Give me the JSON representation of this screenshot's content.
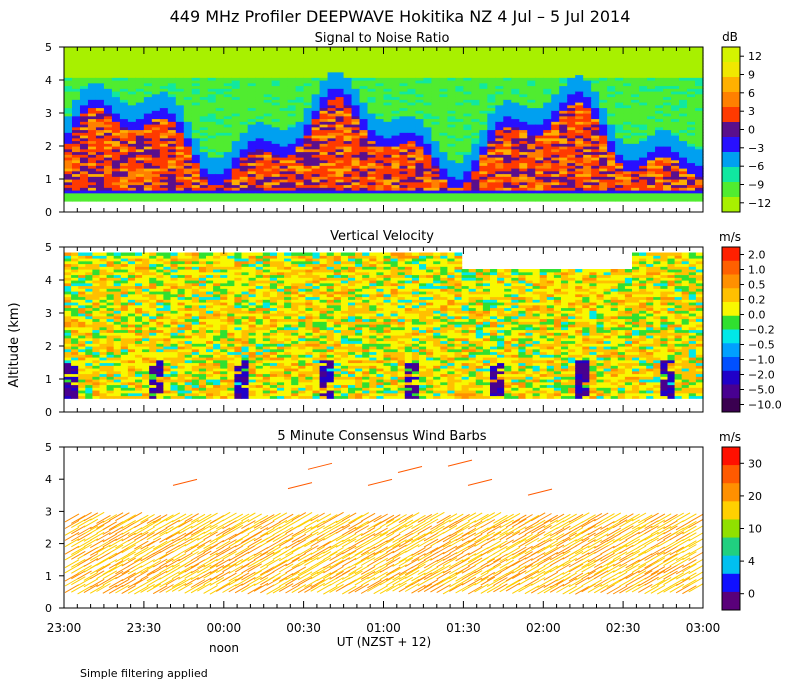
{
  "figure": {
    "title": "449 MHz Profiler DEEPWAVE Hokitika NZ  4 Jul –  5 Jul 2014",
    "ylabel": "Altitude (km)",
    "xlabel": "UT  (NZST + 12)",
    "x_ticks": [
      "23:00",
      "23:30",
      "00:00",
      "00:30",
      "01:00",
      "01:30",
      "02:00",
      "02:30",
      "03:00"
    ],
    "x_sublabel": "noon",
    "note": "Simple filtering applied"
  },
  "chart_data": [
    {
      "type": "heatmap",
      "title": "Signal to Noise Ratio",
      "x": [
        "23:00",
        "23:30",
        "00:00",
        "00:30",
        "01:00",
        "01:30",
        "02:00",
        "02:30",
        "03:00"
      ],
      "ylabel": "Altitude (km)",
      "ylim": [
        0,
        5
      ],
      "yticks": [
        "0",
        "1",
        "2",
        "3",
        "4",
        "5"
      ],
      "colorbar_unit": "dB",
      "colorbar_labels": [
        "12",
        "9",
        "6",
        "3",
        "0",
        "−3",
        "−6",
        "−9",
        "−12"
      ],
      "colors": [
        "#d4f400",
        "#f0e800",
        "#ffb000",
        "#ff8000",
        "#ff3a00",
        "#5a0f8c",
        "#2810ff",
        "#00a0f0",
        "#10e8a0",
        "#50ec30",
        "#a8f000"
      ],
      "description_layers_km": {
        "surface_gap": [
          0,
          0.35
        ],
        "strong_echo": [
          0.7,
          2.5
        ],
        "weak_echo_top": [
          3.0,
          4.2
        ]
      }
    },
    {
      "type": "heatmap",
      "title": "Vertical Velocity",
      "x": [
        "23:00",
        "23:30",
        "00:00",
        "00:30",
        "01:00",
        "01:30",
        "02:00",
        "02:30",
        "03:00"
      ],
      "ylim": [
        0,
        5
      ],
      "yticks": [
        "0",
        "1",
        "2",
        "3",
        "4",
        "5"
      ],
      "colorbar_unit": "m/s",
      "colorbar_labels": [
        "2.0",
        "1.0",
        "0.5",
        "0.2",
        "0.0",
        "−0.2",
        "−0.5",
        "−1.0",
        "−2.0",
        "−5.0",
        "−10.0"
      ],
      "colors": [
        "#3a0050",
        "#480090",
        "#2000c8",
        "#0050ff",
        "#00a0ff",
        "#00e8e8",
        "#30e030",
        "#f8f800",
        "#ffc000",
        "#ff9000",
        "#ff6000",
        "#ff2000"
      ]
    },
    {
      "type": "scatter",
      "title": "5 Minute Consensus Wind Barbs",
      "x": [
        "23:00",
        "23:30",
        "00:00",
        "00:30",
        "01:00",
        "01:30",
        "02:00",
        "02:30",
        "03:00"
      ],
      "ylim": [
        0,
        5
      ],
      "yticks": [
        "0",
        "1",
        "2",
        "3",
        "4",
        "5"
      ],
      "colorbar_unit": "m/s",
      "colorbar_labels": [
        "30",
        "20",
        "10",
        "4",
        "0"
      ],
      "colors": [
        "#5a007a",
        "#1010ff",
        "#00c0f0",
        "#20d080",
        "#90e000",
        "#ffd000",
        "#ff9000",
        "#ff5a00",
        "#ff1000"
      ]
    }
  ]
}
